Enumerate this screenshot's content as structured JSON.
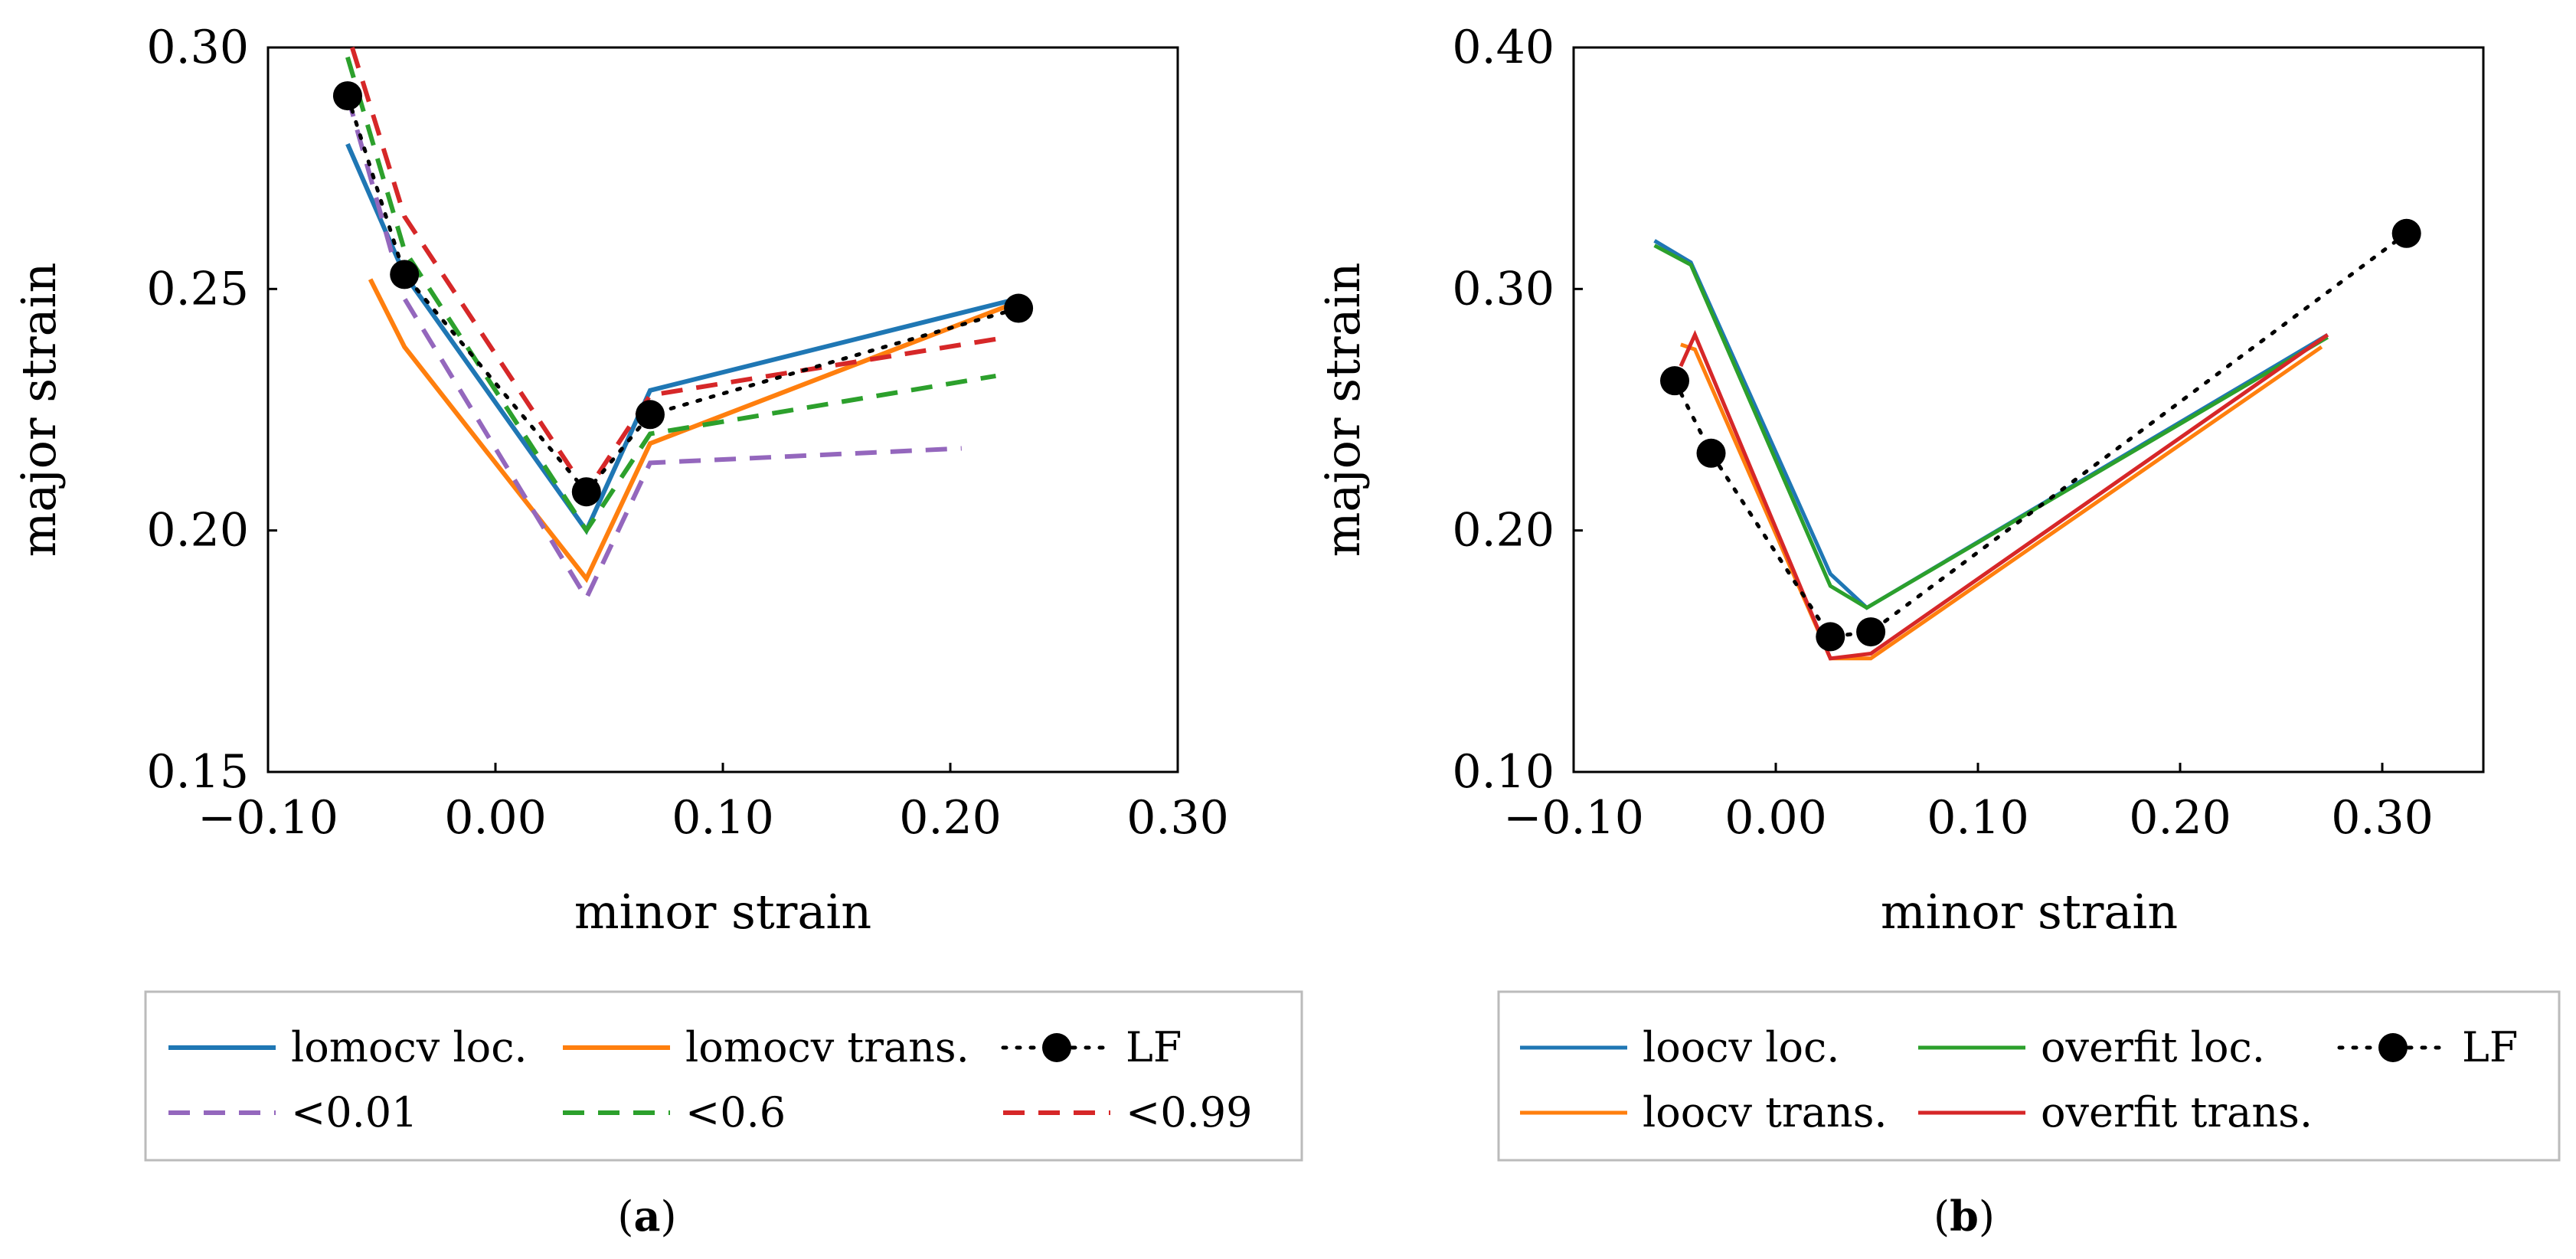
{
  "chart_data": [
    {
      "type": "line",
      "caption": "a",
      "xlabel": "minor strain",
      "ylabel": "major strain",
      "xlim": [
        -0.1,
        0.3
      ],
      "ylim": [
        0.15,
        0.3
      ],
      "xticks": [
        "−0.10",
        "0.00",
        "0.10",
        "0.20",
        "0.30"
      ],
      "yticks": [
        "0.15",
        "0.20",
        "0.25",
        "0.30"
      ],
      "xtick_values": [
        -0.1,
        0.0,
        0.1,
        0.2,
        0.3
      ],
      "ytick_values": [
        0.15,
        0.2,
        0.25,
        0.3
      ],
      "grid": false,
      "legend_placement": "below",
      "series": [
        {
          "name": "lomocv loc.",
          "color": "#1f77b4",
          "style": "solid",
          "x": [
            -0.065,
            -0.04,
            0.04,
            0.068,
            0.23
          ],
          "y": [
            0.28,
            0.253,
            0.2,
            0.229,
            0.248
          ]
        },
        {
          "name": "lomocv trans.",
          "color": "#ff7f0e",
          "style": "solid",
          "x": [
            -0.055,
            -0.04,
            0.04,
            0.068,
            0.228
          ],
          "y": [
            0.252,
            0.238,
            0.19,
            0.218,
            0.247
          ]
        },
        {
          "name": "LF",
          "color": "#000000",
          "style": "dotted-marker",
          "x": [
            -0.065,
            -0.04,
            0.04,
            0.068,
            0.23
          ],
          "y": [
            0.29,
            0.253,
            0.208,
            0.224,
            0.246
          ]
        },
        {
          "name": "<0.01",
          "color": "#9467bd",
          "style": "dashed",
          "x": [
            -0.065,
            -0.04,
            0.04,
            0.068,
            0.205
          ],
          "y": [
            0.29,
            0.248,
            0.186,
            0.214,
            0.217
          ]
        },
        {
          "name": "<0.6",
          "color": "#2ca02c",
          "style": "dashed",
          "x": [
            -0.065,
            -0.04,
            0.04,
            0.068,
            0.22
          ],
          "y": [
            0.298,
            0.258,
            0.2,
            0.22,
            0.232
          ]
        },
        {
          "name": "<0.99",
          "color": "#d62728",
          "style": "dashed",
          "x": [
            -0.063,
            -0.04,
            0.04,
            0.068,
            0.225
          ],
          "y": [
            0.3,
            0.265,
            0.208,
            0.228,
            0.24
          ]
        }
      ]
    },
    {
      "type": "line",
      "caption": "b",
      "xlabel": "minor strain",
      "ylabel": "major strain",
      "xlim": [
        -0.1,
        0.35
      ],
      "ylim": [
        0.1,
        0.4
      ],
      "xticks": [
        "−0.10",
        "0.00",
        "0.10",
        "0.20",
        "0.30"
      ],
      "yticks": [
        "0.10",
        "0.20",
        "0.30",
        "0.40"
      ],
      "xtick_values": [
        -0.1,
        0.0,
        0.1,
        0.2,
        0.3
      ],
      "ytick_values": [
        0.1,
        0.2,
        0.3,
        0.4
      ],
      "grid": false,
      "legend_placement": "below",
      "series": [
        {
          "name": "loocv loc.",
          "color": "#1f77b4",
          "style": "solid",
          "x": [
            -0.06,
            -0.042,
            0.027,
            0.045,
            0.273
          ],
          "y": [
            0.32,
            0.311,
            0.182,
            0.168,
            0.281
          ]
        },
        {
          "name": "overfit loc.",
          "color": "#2ca02c",
          "style": "solid",
          "x": [
            -0.06,
            -0.042,
            0.027,
            0.045,
            0.273
          ],
          "y": [
            0.318,
            0.31,
            0.177,
            0.168,
            0.28
          ]
        },
        {
          "name": "LF",
          "color": "#000000",
          "style": "dotted-marker",
          "x": [
            -0.05,
            -0.032,
            0.027,
            0.047,
            0.312
          ],
          "y": [
            0.262,
            0.232,
            0.156,
            0.158,
            0.323
          ]
        },
        {
          "name": "loocv trans.",
          "color": "#ff7f0e",
          "style": "solid",
          "x": [
            -0.047,
            -0.04,
            0.027,
            0.047,
            0.27
          ],
          "y": [
            0.277,
            0.275,
            0.147,
            0.147,
            0.276
          ]
        },
        {
          "name": "overfit trans.",
          "color": "#d62728",
          "style": "solid",
          "x": [
            -0.047,
            -0.04,
            0.027,
            0.047,
            0.273
          ],
          "y": [
            0.268,
            0.281,
            0.147,
            0.149,
            0.281
          ]
        }
      ]
    }
  ]
}
